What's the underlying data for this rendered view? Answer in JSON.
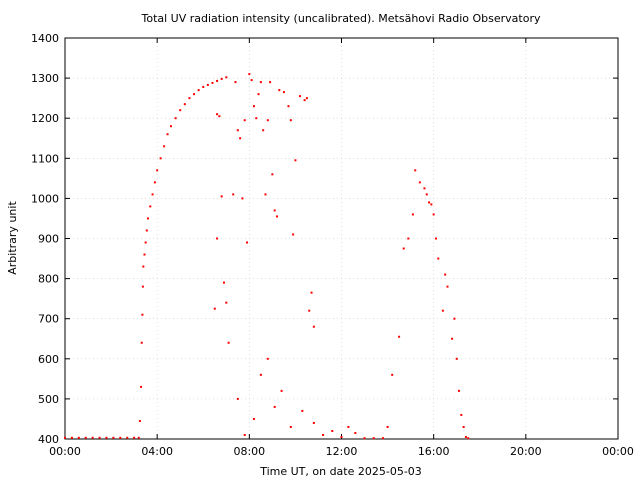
{
  "chart_data": {
    "type": "scatter",
    "title": "Total UV radiation intensity (uncalibrated). Metsähovi Radio Observatory",
    "xlabel": "Time UT, on date 2025-05-03",
    "ylabel": "Arbitrary unit",
    "xlim": [
      0,
      24
    ],
    "ylim": [
      400,
      1400
    ],
    "x_unit": "hours UT",
    "grid": true,
    "legend": "none",
    "x_ticks": [
      {
        "value": 0,
        "label": "00:00"
      },
      {
        "value": 4,
        "label": "04:00"
      },
      {
        "value": 8,
        "label": "08:00"
      },
      {
        "value": 12,
        "label": "12:00"
      },
      {
        "value": 16,
        "label": "16:00"
      },
      {
        "value": 20,
        "label": "20:00"
      },
      {
        "value": 24,
        "label": "00:00"
      }
    ],
    "y_ticks": [
      {
        "value": 400,
        "label": "400"
      },
      {
        "value": 500,
        "label": "500"
      },
      {
        "value": 600,
        "label": "600"
      },
      {
        "value": 700,
        "label": "700"
      },
      {
        "value": 800,
        "label": "800"
      },
      {
        "value": 900,
        "label": "900"
      },
      {
        "value": 1000,
        "label": "1000"
      },
      {
        "value": 1100,
        "label": "1100"
      },
      {
        "value": 1200,
        "label": "1200"
      },
      {
        "value": 1300,
        "label": "1300"
      },
      {
        "value": 1400,
        "label": "1400"
      }
    ],
    "series": [
      {
        "color": "#ff0000",
        "points": [
          [
            0.0,
            403
          ],
          [
            0.3,
            403
          ],
          [
            0.6,
            403
          ],
          [
            0.9,
            403
          ],
          [
            1.2,
            403
          ],
          [
            1.5,
            403
          ],
          [
            1.8,
            403
          ],
          [
            2.1,
            403
          ],
          [
            2.4,
            403
          ],
          [
            2.7,
            403
          ],
          [
            3.0,
            403
          ],
          [
            3.2,
            403
          ],
          [
            3.25,
            445
          ],
          [
            3.3,
            530
          ],
          [
            3.33,
            640
          ],
          [
            3.36,
            710
          ],
          [
            3.38,
            780
          ],
          [
            3.4,
            830
          ],
          [
            3.45,
            860
          ],
          [
            3.5,
            890
          ],
          [
            3.55,
            920
          ],
          [
            3.6,
            950
          ],
          [
            3.7,
            980
          ],
          [
            3.8,
            1010
          ],
          [
            3.9,
            1040
          ],
          [
            4.0,
            1070
          ],
          [
            4.15,
            1100
          ],
          [
            4.3,
            1130
          ],
          [
            4.45,
            1160
          ],
          [
            4.6,
            1180
          ],
          [
            4.8,
            1200
          ],
          [
            5.0,
            1220
          ],
          [
            5.2,
            1235
          ],
          [
            5.4,
            1250
          ],
          [
            5.6,
            1260
          ],
          [
            5.8,
            1270
          ],
          [
            6.0,
            1278
          ],
          [
            6.2,
            1283
          ],
          [
            6.4,
            1288
          ],
          [
            6.6,
            1293
          ],
          [
            6.8,
            1298
          ],
          [
            7.0,
            1302
          ],
          [
            6.6,
            1210
          ],
          [
            6.7,
            1205
          ],
          [
            6.6,
            900
          ],
          [
            6.5,
            725
          ],
          [
            6.8,
            1005
          ],
          [
            6.9,
            790
          ],
          [
            7.0,
            740
          ],
          [
            7.1,
            640
          ],
          [
            7.3,
            1010
          ],
          [
            7.4,
            1290
          ],
          [
            7.5,
            1170
          ],
          [
            7.6,
            1150
          ],
          [
            7.7,
            1000
          ],
          [
            7.8,
            1195
          ],
          [
            7.9,
            890
          ],
          [
            8.0,
            1310
          ],
          [
            8.1,
            1295
          ],
          [
            8.2,
            1230
          ],
          [
            8.3,
            1200
          ],
          [
            8.4,
            1260
          ],
          [
            8.5,
            1290
          ],
          [
            8.6,
            1170
          ],
          [
            8.7,
            1010
          ],
          [
            8.8,
            1195
          ],
          [
            8.9,
            1290
          ],
          [
            9.0,
            1060
          ],
          [
            9.1,
            970
          ],
          [
            9.2,
            955
          ],
          [
            9.3,
            1270
          ],
          [
            9.5,
            1265
          ],
          [
            9.7,
            1230
          ],
          [
            9.8,
            1195
          ],
          [
            9.9,
            910
          ],
          [
            10.0,
            1095
          ],
          [
            10.2,
            1255
          ],
          [
            10.4,
            1245
          ],
          [
            10.5,
            1250
          ],
          [
            10.6,
            720
          ],
          [
            10.7,
            765
          ],
          [
            10.8,
            680
          ],
          [
            7.5,
            500
          ],
          [
            7.8,
            410
          ],
          [
            8.2,
            450
          ],
          [
            8.5,
            560
          ],
          [
            8.8,
            600
          ],
          [
            9.1,
            480
          ],
          [
            9.4,
            520
          ],
          [
            9.8,
            430
          ],
          [
            10.3,
            470
          ],
          [
            10.8,
            440
          ],
          [
            11.2,
            410
          ],
          [
            11.6,
            420
          ],
          [
            12.0,
            405
          ],
          [
            12.3,
            430
          ],
          [
            12.6,
            415
          ],
          [
            13.0,
            402
          ],
          [
            13.4,
            402
          ],
          [
            13.8,
            402
          ],
          [
            14.0,
            430
          ],
          [
            14.2,
            560
          ],
          [
            14.5,
            655
          ],
          [
            14.7,
            875
          ],
          [
            14.9,
            900
          ],
          [
            15.1,
            960
          ],
          [
            15.2,
            1070
          ],
          [
            15.4,
            1040
          ],
          [
            15.6,
            1025
          ],
          [
            15.7,
            1010
          ],
          [
            15.8,
            990
          ],
          [
            15.9,
            985
          ],
          [
            16.0,
            960
          ],
          [
            16.1,
            900
          ],
          [
            16.2,
            850
          ],
          [
            16.4,
            720
          ],
          [
            16.5,
            810
          ],
          [
            16.6,
            780
          ],
          [
            16.8,
            650
          ],
          [
            16.9,
            700
          ],
          [
            17.0,
            600
          ],
          [
            17.1,
            520
          ],
          [
            17.2,
            460
          ],
          [
            17.3,
            430
          ],
          [
            17.4,
            405
          ],
          [
            17.5,
            402
          ]
        ]
      }
    ]
  }
}
